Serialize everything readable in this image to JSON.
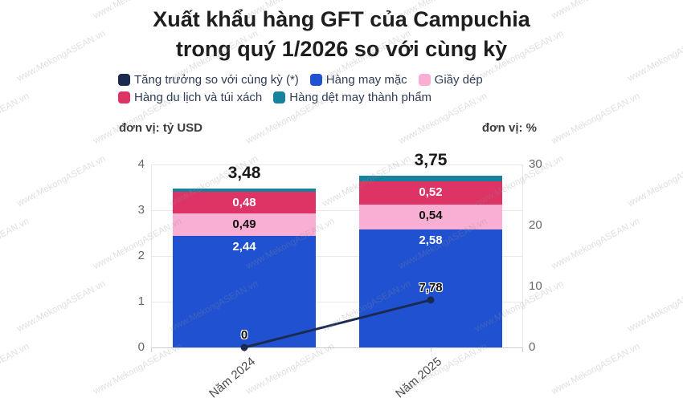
{
  "title": {
    "line1": "Xuất khẩu hàng GFT của Campuchia",
    "line2": "trong quý 1/2026 so với cùng kỳ"
  },
  "watermark": "www.MekongASEAN.vn",
  "colors": {
    "growth": "#1a2a50",
    "garments": "#2051d1",
    "footwear": "#f9aed3",
    "travel": "#dd3365",
    "textiles": "#16829e"
  },
  "legend": {
    "rows": [
      [
        {
          "label": "Tăng trưởng so với cùng kỳ (*)",
          "color": "growth"
        },
        {
          "label": "Hàng may mặc",
          "color": "garments"
        },
        {
          "label": "Giầy dép",
          "color": "footwear"
        }
      ],
      [
        {
          "label": "Hàng du lịch và túi xách",
          "color": "travel"
        },
        {
          "label": "Hàng dệt may thành phẩm",
          "color": "textiles"
        }
      ]
    ]
  },
  "chart_data": {
    "type": "bar",
    "subtype": "stacked-columns-with-line-overlay",
    "categories": [
      "Năm 2024",
      "Năm 2025"
    ],
    "series": [
      {
        "name": "Hàng may mặc",
        "kind": "column",
        "axis": "left",
        "color": "garments",
        "values": [
          2.44,
          2.58
        ],
        "labels": [
          "2,44",
          "2,58"
        ],
        "label_color": "#ffffff"
      },
      {
        "name": "Giầy dép",
        "kind": "column",
        "axis": "left",
        "color": "footwear",
        "values": [
          0.49,
          0.54
        ],
        "labels": [
          "0,49",
          "0,54"
        ],
        "label_color": "#111111"
      },
      {
        "name": "Hàng du lịch và túi xách",
        "kind": "column",
        "axis": "left",
        "color": "travel",
        "values": [
          0.48,
          0.52
        ],
        "labels": [
          "0,48",
          "0,52"
        ],
        "label_color": "#ffffff"
      },
      {
        "name": "Hàng dệt may thành phẩm",
        "kind": "column",
        "axis": "left",
        "color": "textiles",
        "values": [
          0.07,
          0.11
        ],
        "labels": [
          "",
          ""
        ],
        "label_color": "#ffffff"
      },
      {
        "name": "Tăng trưởng so với cùng kỳ (*)",
        "kind": "line",
        "axis": "right",
        "color": "growth",
        "values": [
          0,
          7.78
        ],
        "labels": [
          "0",
          "7,78"
        ]
      }
    ],
    "stack_totals": {
      "values": [
        3.48,
        3.75
      ],
      "labels": [
        "3,48",
        "3,75"
      ]
    },
    "left_axis": {
      "title": "đơn vị: tỷ USD",
      "range": [
        0,
        4
      ],
      "ticks": [
        0,
        1,
        2,
        3,
        4
      ]
    },
    "right_axis": {
      "title": "đơn vị: %",
      "range": [
        0,
        30
      ],
      "ticks": [
        0,
        10,
        20,
        30
      ]
    },
    "grid": "horizontal",
    "legend_position": "top-left"
  }
}
